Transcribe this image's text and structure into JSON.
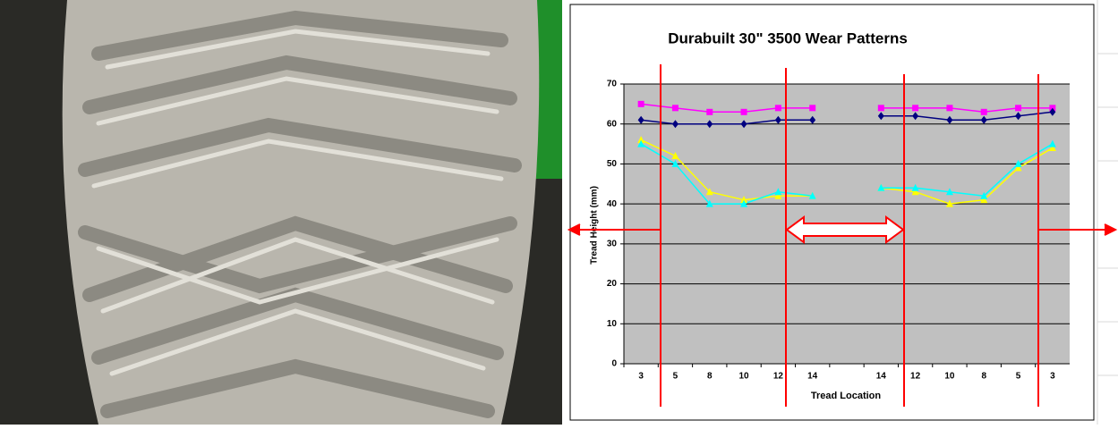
{
  "chart_data": {
    "type": "line",
    "title": "Durabuilt 30\"  3500 Wear Patterns",
    "x_label": "Tread Location",
    "y_label": "Tread Height (mm)",
    "categories": [
      "3",
      "5",
      "8",
      "10",
      "12",
      "14",
      null,
      "14",
      "12",
      "10",
      "8",
      "5",
      "3"
    ],
    "series": [
      {
        "color": "#ff00ff",
        "marker": "square",
        "values": [
          65,
          64,
          63,
          63,
          64,
          64,
          null,
          64,
          64,
          64,
          63,
          64,
          64
        ]
      },
      {
        "color": "#000080",
        "marker": "diamond",
        "values": [
          61,
          60,
          60,
          60,
          61,
          61,
          null,
          62,
          62,
          61,
          61,
          62,
          63
        ]
      },
      {
        "color": "#ffff00",
        "marker": "triangle",
        "values": [
          56,
          52,
          43,
          41,
          42,
          42,
          null,
          44,
          43,
          40,
          41,
          49,
          54
        ]
      },
      {
        "color": "#00ffff",
        "marker": "triangle",
        "values": [
          55,
          50,
          40,
          40,
          43,
          42,
          null,
          44,
          44,
          43,
          42,
          50,
          55
        ]
      }
    ],
    "ylim": [
      0,
      70
    ],
    "yticks": [
      0,
      10,
      20,
      30,
      40,
      50,
      60,
      70
    ],
    "grid": true,
    "plot_background": "#c0c0c0"
  }
}
